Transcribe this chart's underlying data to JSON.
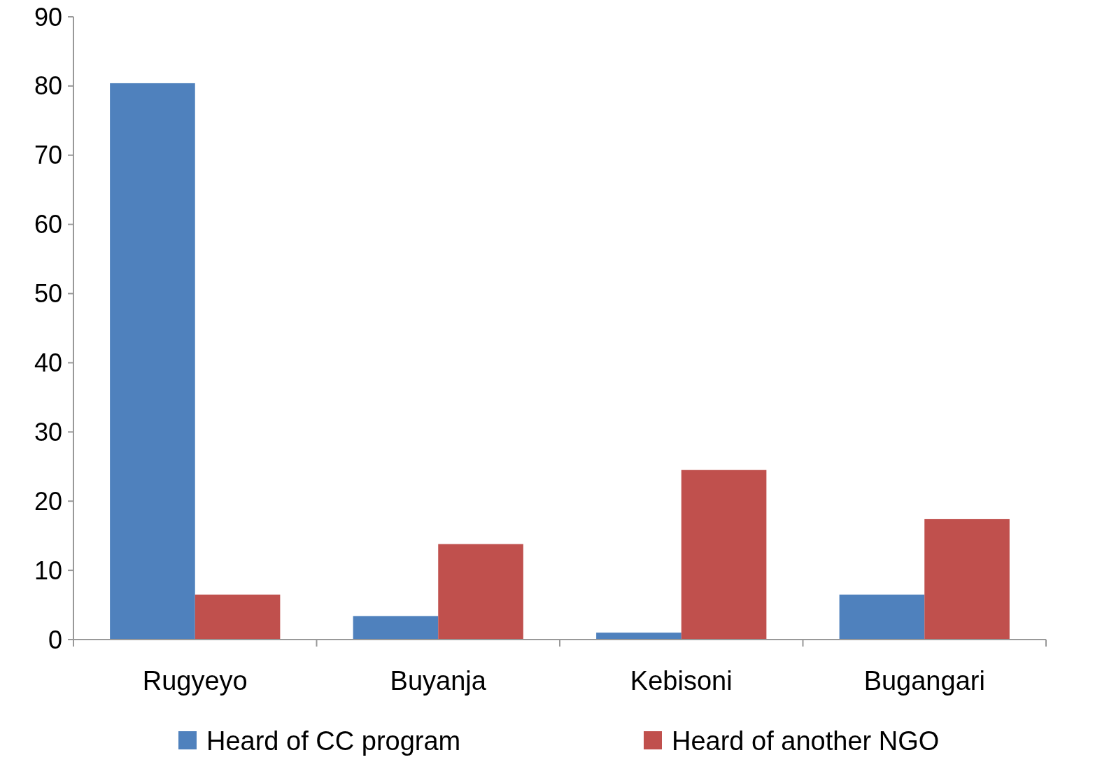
{
  "chart_data": {
    "type": "bar",
    "categories": [
      "Rugyeyo",
      "Buyanja",
      "Kebisoni",
      "Bugangari"
    ],
    "series": [
      {
        "name": "Heard of CC program",
        "color": "#4f81bd",
        "values": [
          80.4,
          3.4,
          1,
          6.5
        ]
      },
      {
        "name": "Heard of another NGO",
        "color": "#c0504d",
        "values": [
          6.5,
          13.8,
          24.5,
          17.4
        ]
      }
    ],
    "ylim": [
      0,
      90
    ],
    "yticks": [
      0,
      10,
      20,
      30,
      40,
      50,
      60,
      70,
      80,
      90
    ],
    "grid": false,
    "legend": "bottom"
  }
}
